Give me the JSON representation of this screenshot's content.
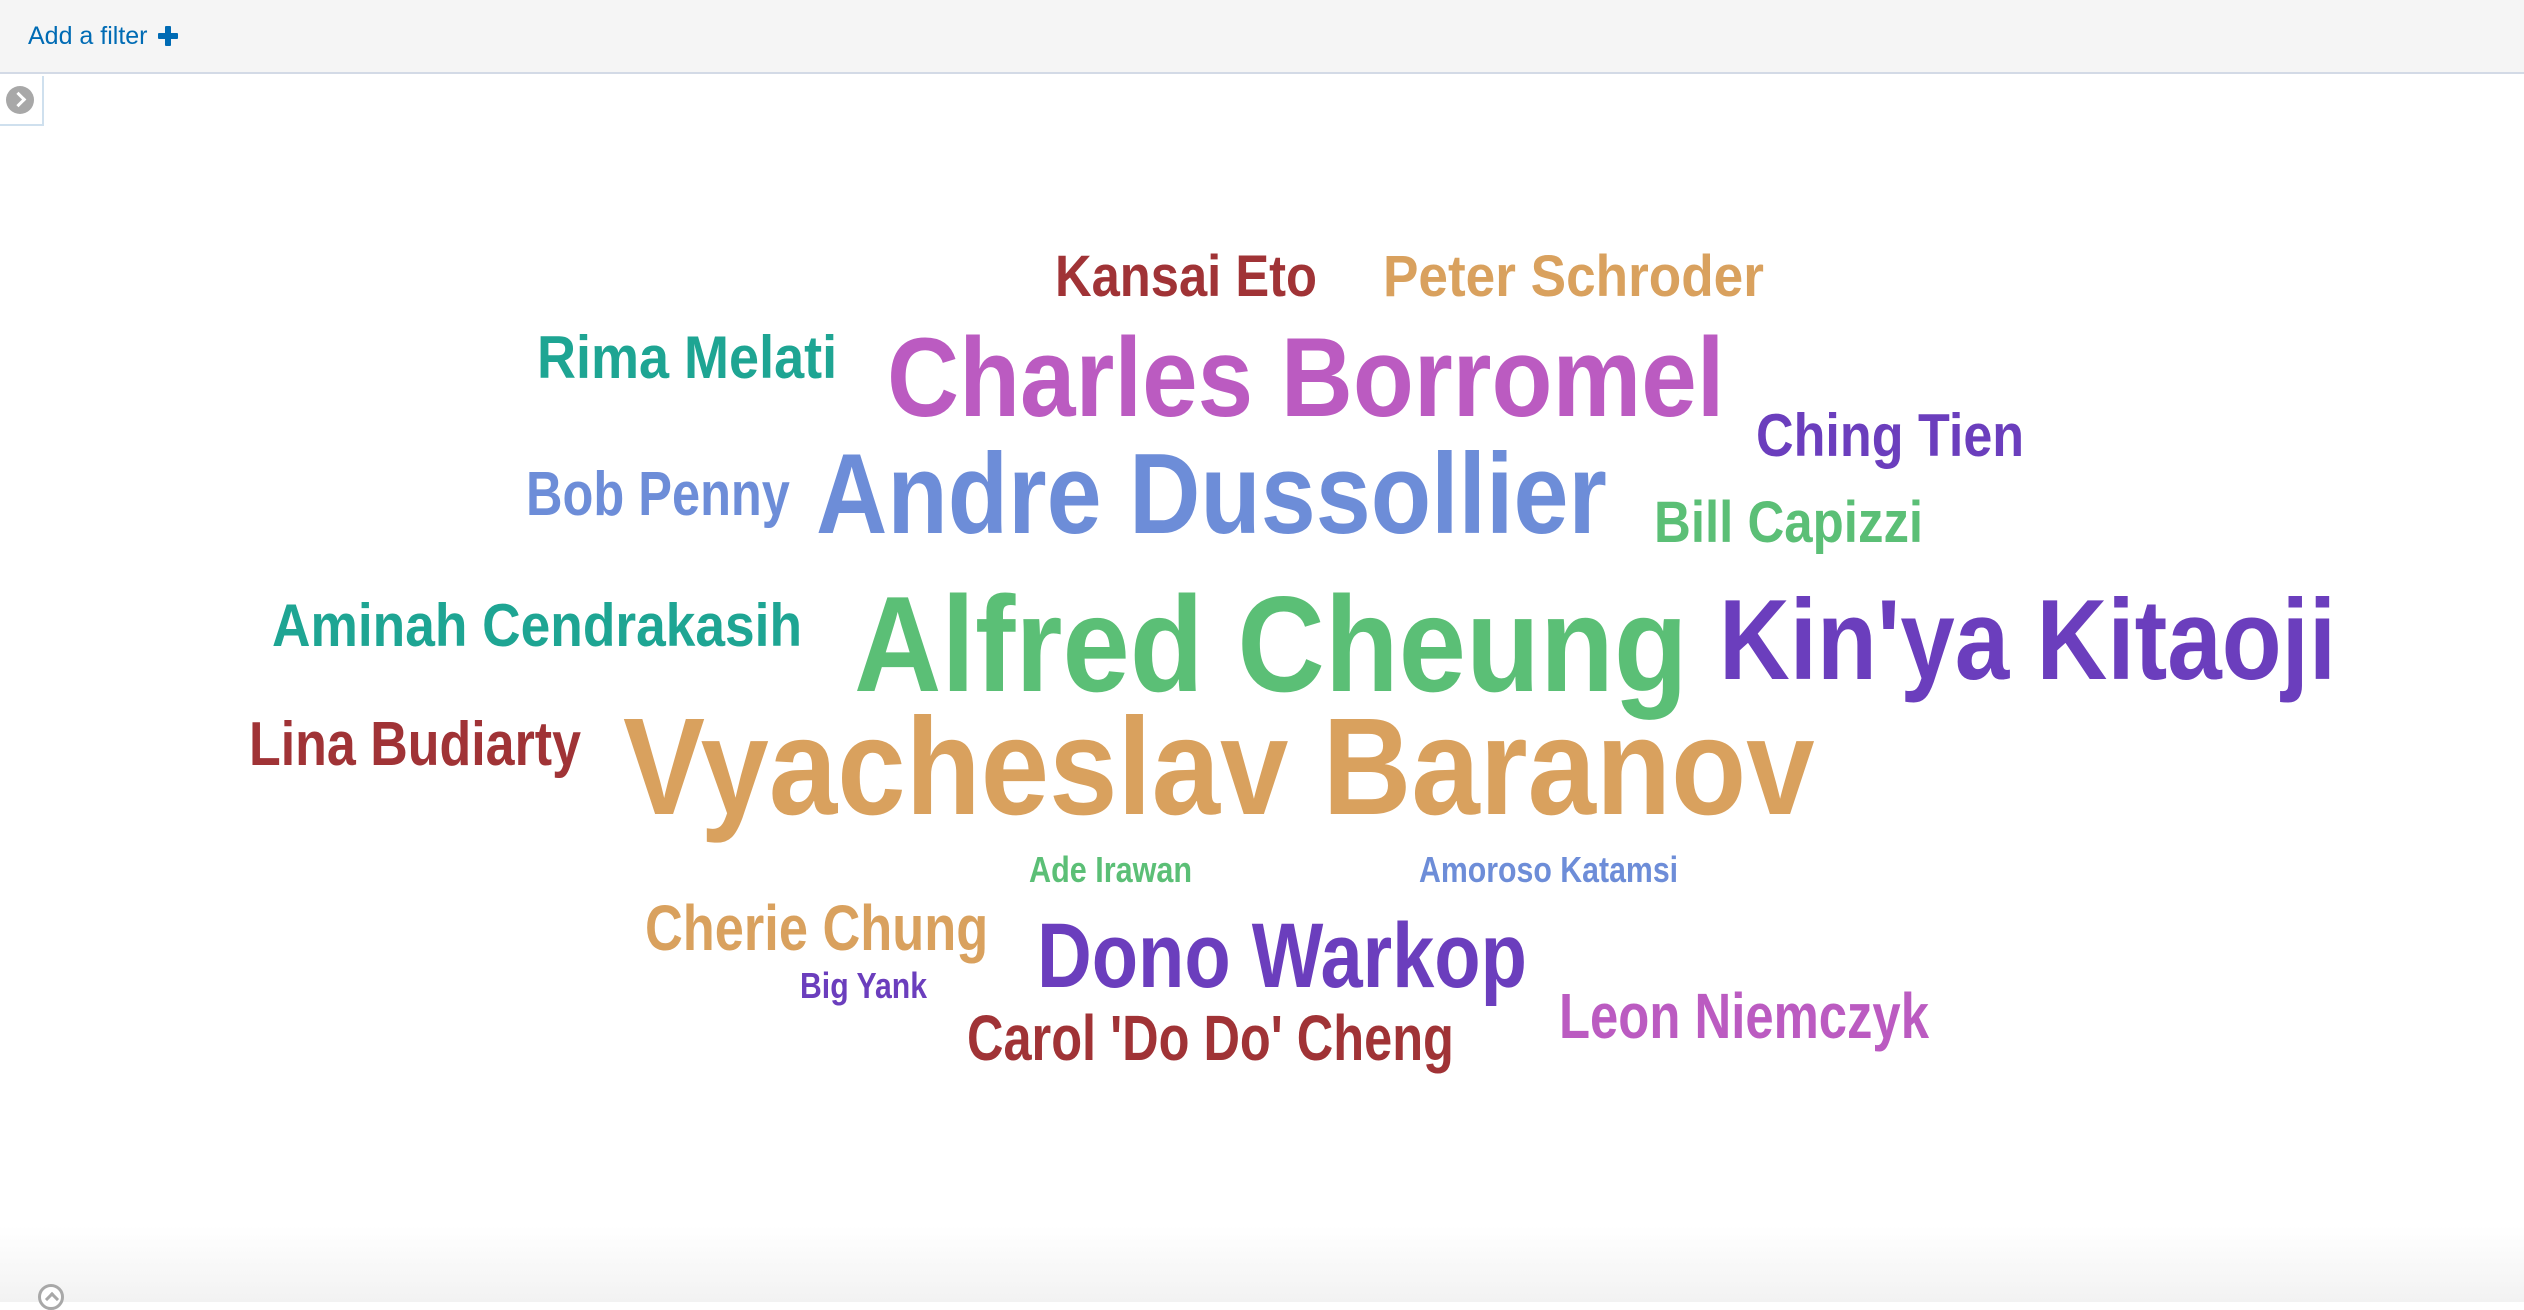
{
  "filter_bar": {
    "add_filter_label": "Add a filter",
    "plus_icon": "plus-icon"
  },
  "sidebar_toggle": {
    "icon": "chevron-right-circle-icon"
  },
  "bottom_panel": {
    "icon": "chevron-up-circle-icon"
  },
  "chart_data": {
    "type": "wordcloud",
    "words": [
      {
        "text": "Kansai Eto",
        "color": "#a03336"
      },
      {
        "text": "Peter Schroder",
        "color": "#d9a15e"
      },
      {
        "text": "Rima Melati",
        "color": "#1ea593"
      },
      {
        "text": "Charles Borromel",
        "color": "#bb5bc1"
      },
      {
        "text": "Ching Tien",
        "color": "#6b3ebd"
      },
      {
        "text": "Bob Penny",
        "color": "#6d8dd8"
      },
      {
        "text": "Andre Dussollier",
        "color": "#6d8dd8"
      },
      {
        "text": "Bill Capizzi",
        "color": "#5bbf76"
      },
      {
        "text": "Aminah Cendrakasih",
        "color": "#1ea593"
      },
      {
        "text": "Alfred Cheung",
        "color": "#5bbf76"
      },
      {
        "text": "Kin'ya Kitaoji",
        "color": "#6b3ebd"
      },
      {
        "text": "Lina Budiarty",
        "color": "#a03336"
      },
      {
        "text": "Vyacheslav Baranov",
        "color": "#d9a15e"
      },
      {
        "text": "Ade Irawan",
        "color": "#5bbf76"
      },
      {
        "text": "Amoroso Katamsi",
        "color": "#6d8dd8"
      },
      {
        "text": "Cherie Chung",
        "color": "#d9a15e"
      },
      {
        "text": "Dono Warkop",
        "color": "#6b3ebd"
      },
      {
        "text": "Big Yank",
        "color": "#6b3ebd"
      },
      {
        "text": "Carol 'Do Do' Cheng",
        "color": "#a03336"
      },
      {
        "text": "Leon Niemczyk",
        "color": "#bb5bc1"
      }
    ]
  }
}
